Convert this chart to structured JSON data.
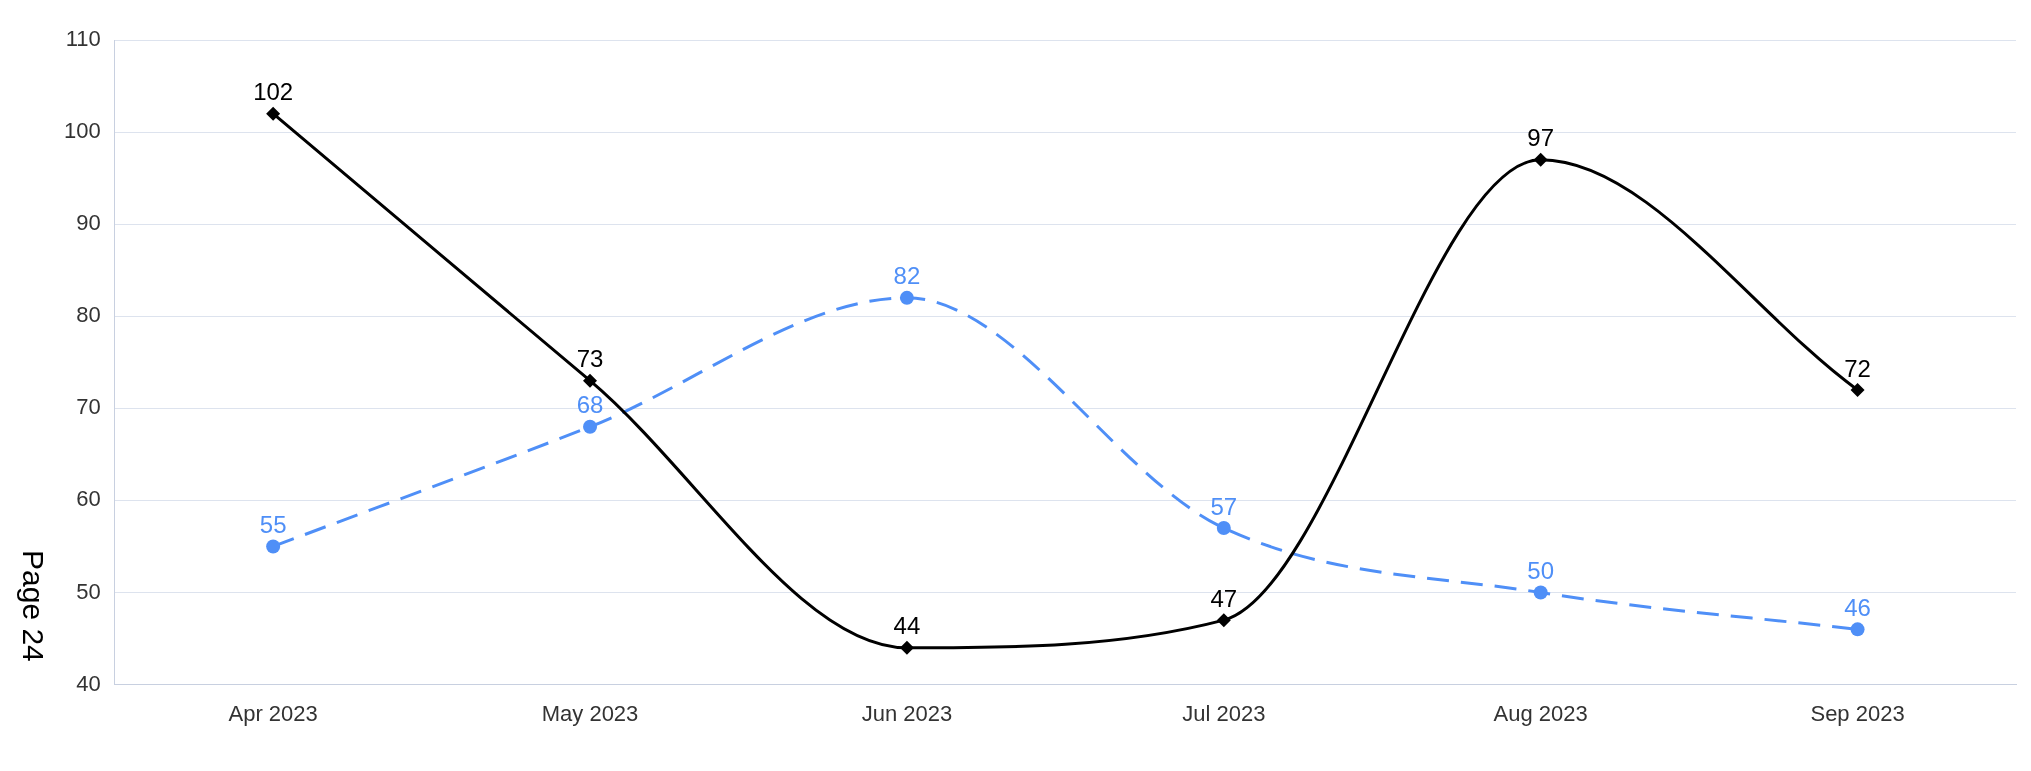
{
  "chart_data": {
    "type": "line",
    "categories": [
      "Apr 2023",
      "May 2023",
      "Jun 2023",
      "Jul 2023",
      "Aug 2023",
      "Sep 2023"
    ],
    "series": [
      {
        "color": "#000000",
        "values": [
          102,
          73,
          44,
          47,
          97,
          72
        ],
        "marker": "diamond",
        "line_style": "solid"
      },
      {
        "color": "#4f8ff7",
        "values": [
          55,
          68,
          82,
          57,
          50,
          46
        ],
        "marker": "circle",
        "line_style": "dashed"
      }
    ],
    "ylim": [
      40,
      110
    ],
    "yticks": [
      40,
      50,
      60,
      70,
      80,
      90,
      100,
      110
    ],
    "grid": "y",
    "legend": false,
    "data_labels": true,
    "annotations": [
      "Page 24"
    ]
  }
}
